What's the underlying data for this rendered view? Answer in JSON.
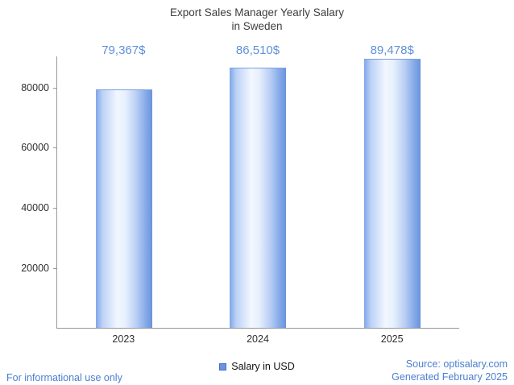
{
  "chart_data": {
    "type": "bar",
    "title_line1": "Export Sales Manager Yearly Salary",
    "title_line2": "in Sweden",
    "categories": [
      "2023",
      "2024",
      "2025"
    ],
    "values": [
      79367,
      86510,
      89478
    ],
    "value_labels": [
      "79,367$",
      "86,510$",
      "89,478$"
    ],
    "yticks": [
      20000,
      40000,
      60000,
      80000
    ],
    "ytick_labels": [
      "20000",
      "40000",
      "60000",
      "80000"
    ],
    "ylim": [
      0,
      90280
    ],
    "grid": false,
    "legend": "Salary in USD",
    "legend_position": "bottom-center",
    "colors": {
      "bar_edge_blue": "#6b93dd",
      "bar_center": "#f2f7ff",
      "value_label_blue": "#5e90da",
      "footer_blue": "#4b7ed0",
      "axis_gray": "#979797",
      "title_gray": "#3d3d3d"
    }
  },
  "footer": {
    "left": "For informational use only",
    "source": "Source: optisalary.com",
    "generated": "Generated February 2025"
  }
}
